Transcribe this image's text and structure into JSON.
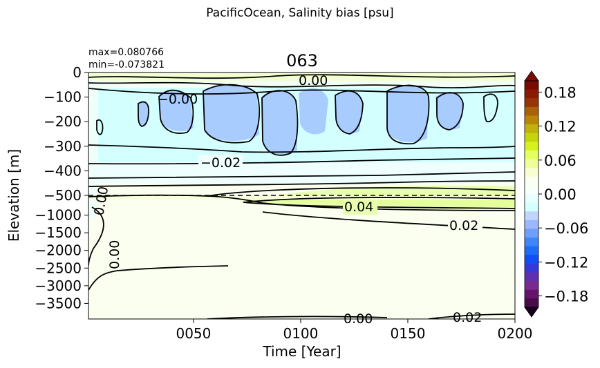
{
  "figure": {
    "suptitle": "PacificOcean, Salinity bias [psu]",
    "title": "063",
    "max_label": "max=0.080766",
    "min_label": "min=-0.073821"
  },
  "chart_data": {
    "type": "heatmap",
    "title": "063",
    "xlabel": "Time [Year]",
    "ylabel": "Elevation [m]",
    "x_ticks": [
      "0050",
      "0100",
      "0150",
      "0200"
    ],
    "y_ticks_upper": [
      "0",
      "−100",
      "−200",
      "−300",
      "−400",
      "−500"
    ],
    "y_ticks_lower": [
      "−1000",
      "−1500",
      "−2000",
      "−2500",
      "−3000",
      "−3500"
    ],
    "xlim": [
      1,
      200
    ],
    "ylim_upper": [
      -500,
      0
    ],
    "ylim_lower": [
      -4000,
      -500
    ],
    "stats": {
      "max": 0.080766,
      "min": -0.073821
    },
    "colorbar": {
      "ticks": [
        "0.18",
        "0.12",
        "0.06",
        "0.00",
        "−0.06",
        "−0.12",
        "−0.18"
      ],
      "range": [
        -0.2,
        0.2
      ],
      "extend": "both"
    },
    "contour_labels": [
      "−0.02",
      "0.04",
      "0.02",
      "0.00",
      "0.00",
      "−0.00",
      "0.02",
      "0.00",
      "0.00"
    ],
    "regions": [
      {
        "depth": "0 to -30 m",
        "value": 0.01
      },
      {
        "depth": "-100 to -350 m",
        "value": -0.04
      },
      {
        "depth": "-350 to -470 m",
        "value": -0.01
      },
      {
        "depth": "-500 to -1200 m",
        "value": 0.04
      },
      {
        "depth": "-1200 to -4000 m",
        "value": 0.01
      }
    ]
  }
}
